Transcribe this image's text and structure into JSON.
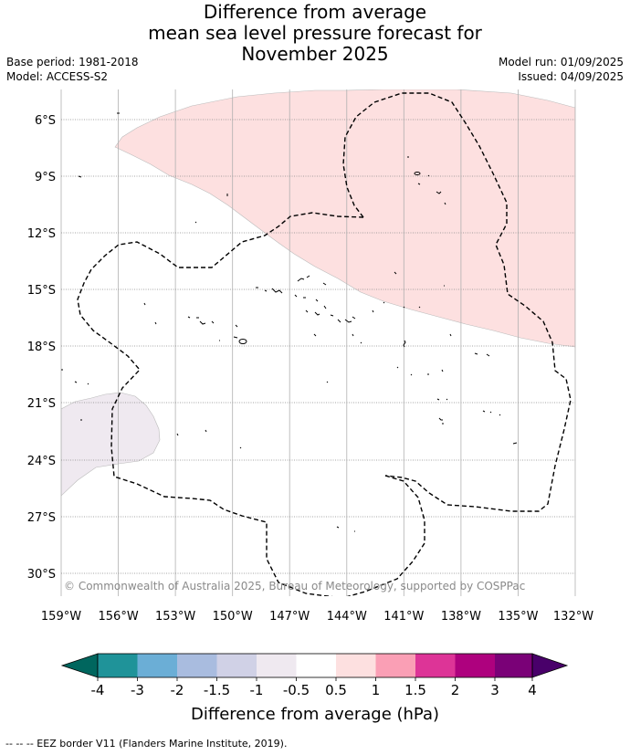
{
  "title": {
    "line1": "Difference from average",
    "line2": "mean sea level pressure forecast for",
    "line3": "November 2025"
  },
  "meta": {
    "base_period": "Base period: 1981-2018",
    "model": "Model: ACCESS-S2",
    "model_run": "Model run: 01/09/2025",
    "issued": "Issued: 04/09/2025"
  },
  "map": {
    "lat_labels": [
      "6°S",
      "9°S",
      "12°S",
      "15°S",
      "18°S",
      "21°S",
      "24°S",
      "27°S",
      "30°S"
    ],
    "lon_labels": [
      "159°W",
      "156°W",
      "153°W",
      "150°W",
      "147°W",
      "144°W",
      "141°W",
      "138°W",
      "135°W",
      "132°W"
    ],
    "copyright": "© Commonwealth of Australia 2025, Bureau of Meteorology, supported by COSPPac",
    "regions": [
      {
        "name": "positive-anomaly",
        "range": "0.5 to 1",
        "color": "#fde0e0"
      },
      {
        "name": "negative-anomaly",
        "range": "-1 to -0.5",
        "color": "#efe9f0"
      }
    ]
  },
  "colorbar": {
    "colors": [
      "#00665e",
      "#1f9399",
      "#6baed6",
      "#a9bcdf",
      "#d0d1e6",
      "#efe9f0",
      "#ffffff",
      "#fde0e0",
      "#fa9fb5",
      "#dd3497",
      "#ae017e",
      "#7a0177",
      "#49006a"
    ],
    "tick_labels": [
      "-4",
      "-3",
      "-2",
      "-1.5",
      "-1",
      "-0.5",
      "0.5",
      "1",
      "1.5",
      "2",
      "3",
      "4"
    ],
    "label": "Difference from average (hPa)"
  },
  "footnote": "--  --  -- EEZ border V11 (Flanders Marine Institute, 2019)."
}
